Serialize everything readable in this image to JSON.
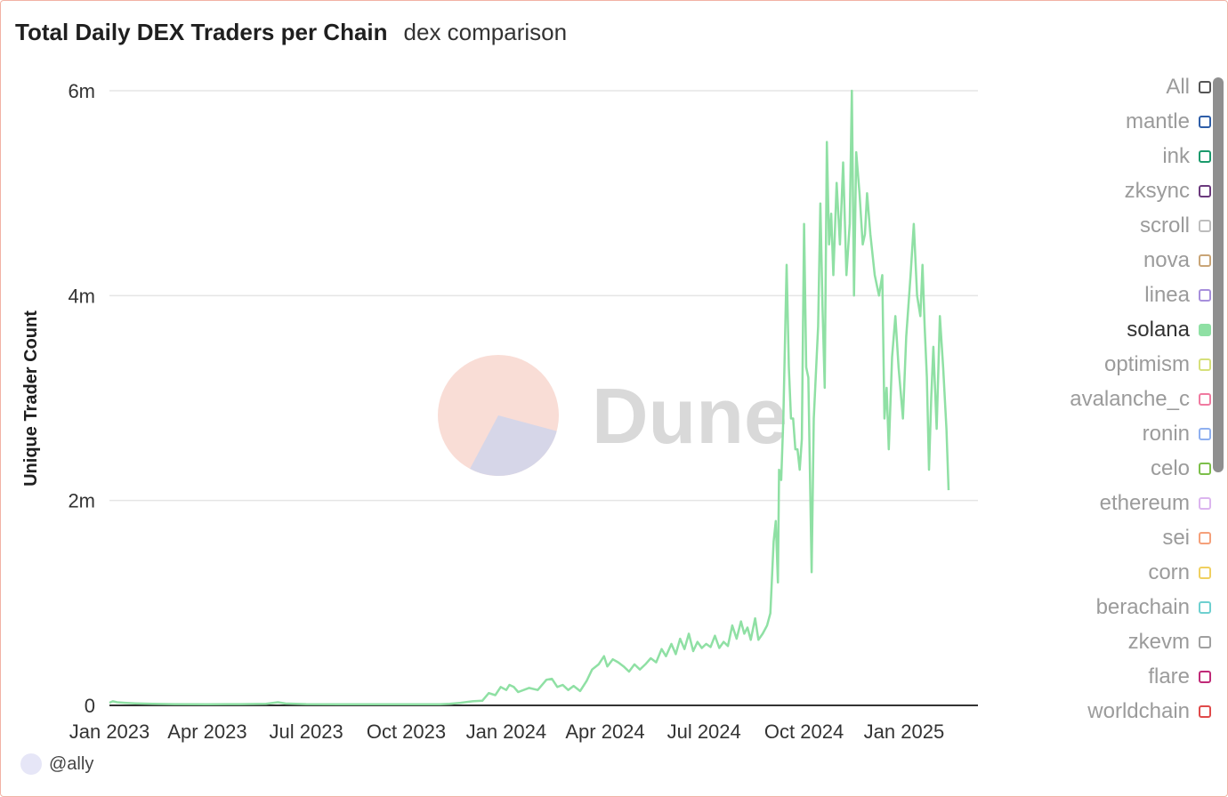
{
  "header": {
    "title": "Total Daily DEX Traders per Chain",
    "subtitle": "dex comparison"
  },
  "watermark": {
    "text": "Dune",
    "colors": {
      "top": "#f9ddd6",
      "bottom": "#d6d6e8",
      "text": "#d9d9d9"
    }
  },
  "author": {
    "handle": "@ally"
  },
  "colors": {
    "series": "#8fe0a4",
    "grid": "#e5e5e5",
    "axis": "#333333",
    "border": "#f2b2a4"
  },
  "legend": {
    "items": [
      {
        "label": "All",
        "color": "#555555",
        "active": false
      },
      {
        "label": "mantle",
        "color": "#2e5ea8",
        "active": false
      },
      {
        "label": "ink",
        "color": "#1a9a6c",
        "active": false
      },
      {
        "label": "zksync",
        "color": "#6b3a7d",
        "active": false
      },
      {
        "label": "scroll",
        "color": "#bdbdbd",
        "active": false
      },
      {
        "label": "nova",
        "color": "#c9a577",
        "active": false
      },
      {
        "label": "linea",
        "color": "#a78fdc",
        "active": false
      },
      {
        "label": "solana",
        "color": "#8fe0a4",
        "active": true
      },
      {
        "label": "optimism",
        "color": "#d6e07a",
        "active": false
      },
      {
        "label": "avalanche_c",
        "color": "#f07aa0",
        "active": false
      },
      {
        "label": "ronin",
        "color": "#8fb0f0",
        "active": false
      },
      {
        "label": "celo",
        "color": "#7cbf4a",
        "active": false
      },
      {
        "label": "ethereum",
        "color": "#dcb5ef",
        "active": false
      },
      {
        "label": "sei",
        "color": "#f5a07a",
        "active": false
      },
      {
        "label": "corn",
        "color": "#f0d060",
        "active": false
      },
      {
        "label": "berachain",
        "color": "#6ed0d0",
        "active": false
      },
      {
        "label": "zkevm",
        "color": "#a0a0a0",
        "active": false
      },
      {
        "label": "flare",
        "color": "#c02a78",
        "active": false
      },
      {
        "label": "worldchain",
        "color": "#e04a4a",
        "active": false
      }
    ]
  },
  "chart_data": {
    "type": "line",
    "title": "Total Daily DEX Traders per Chain",
    "subtitle": "dex comparison",
    "xlabel": "",
    "ylabel": "Unique Trader Count",
    "ylim": [
      0,
      6000000
    ],
    "xlim": [
      "2023-01-01",
      "2025-03-10"
    ],
    "yticks": [
      {
        "value": 0,
        "label": "0"
      },
      {
        "value": 2000000,
        "label": "2m"
      },
      {
        "value": 4000000,
        "label": "4m"
      },
      {
        "value": 6000000,
        "label": "6m"
      }
    ],
    "xticks": [
      {
        "date": "2023-01-01",
        "label": "Jan 2023"
      },
      {
        "date": "2023-04-01",
        "label": "Apr 2023"
      },
      {
        "date": "2023-07-01",
        "label": "Jul 2023"
      },
      {
        "date": "2023-10-01",
        "label": "Oct 2023"
      },
      {
        "date": "2024-01-01",
        "label": "Jan 2024"
      },
      {
        "date": "2024-04-01",
        "label": "Apr 2024"
      },
      {
        "date": "2024-07-01",
        "label": "Jul 2024"
      },
      {
        "date": "2024-10-01",
        "label": "Oct 2024"
      },
      {
        "date": "2025-01-01",
        "label": "Jan 2025"
      }
    ],
    "grid": true,
    "legend_position": "right",
    "series": [
      {
        "name": "solana",
        "color": "#8fe0a4",
        "points": [
          [
            "2023-01-01",
            25000
          ],
          [
            "2023-01-04",
            40000
          ],
          [
            "2023-01-08",
            30000
          ],
          [
            "2023-01-15",
            25000
          ],
          [
            "2023-01-25",
            20000
          ],
          [
            "2023-02-10",
            15000
          ],
          [
            "2023-03-01",
            12000
          ],
          [
            "2023-04-01",
            10000
          ],
          [
            "2023-05-01",
            12000
          ],
          [
            "2023-05-25",
            15000
          ],
          [
            "2023-06-05",
            30000
          ],
          [
            "2023-06-12",
            18000
          ],
          [
            "2023-07-01",
            12000
          ],
          [
            "2023-08-01",
            10000
          ],
          [
            "2023-09-01",
            10000
          ],
          [
            "2023-10-01",
            10000
          ],
          [
            "2023-11-01",
            10000
          ],
          [
            "2023-11-10",
            15000
          ],
          [
            "2023-11-20",
            25000
          ],
          [
            "2023-12-01",
            40000
          ],
          [
            "2023-12-10",
            45000
          ],
          [
            "2023-12-16",
            120000
          ],
          [
            "2023-12-22",
            100000
          ],
          [
            "2023-12-27",
            180000
          ],
          [
            "2024-01-01",
            150000
          ],
          [
            "2024-01-04",
            200000
          ],
          [
            "2024-01-08",
            180000
          ],
          [
            "2024-01-12",
            130000
          ],
          [
            "2024-01-22",
            170000
          ],
          [
            "2024-01-30",
            150000
          ],
          [
            "2024-02-07",
            250000
          ],
          [
            "2024-02-12",
            260000
          ],
          [
            "2024-02-17",
            180000
          ],
          [
            "2024-02-22",
            200000
          ],
          [
            "2024-02-27",
            150000
          ],
          [
            "2024-03-03",
            190000
          ],
          [
            "2024-03-09",
            140000
          ],
          [
            "2024-03-15",
            240000
          ],
          [
            "2024-03-20",
            350000
          ],
          [
            "2024-03-26",
            400000
          ],
          [
            "2024-03-31",
            480000
          ],
          [
            "2024-04-03",
            380000
          ],
          [
            "2024-04-08",
            450000
          ],
          [
            "2024-04-13",
            420000
          ],
          [
            "2024-04-18",
            380000
          ],
          [
            "2024-04-23",
            330000
          ],
          [
            "2024-04-28",
            400000
          ],
          [
            "2024-05-03",
            350000
          ],
          [
            "2024-05-08",
            400000
          ],
          [
            "2024-05-13",
            460000
          ],
          [
            "2024-05-18",
            420000
          ],
          [
            "2024-05-23",
            550000
          ],
          [
            "2024-05-27",
            480000
          ],
          [
            "2024-06-01",
            600000
          ],
          [
            "2024-06-05",
            500000
          ],
          [
            "2024-06-09",
            650000
          ],
          [
            "2024-06-13",
            550000
          ],
          [
            "2024-06-17",
            700000
          ],
          [
            "2024-06-21",
            530000
          ],
          [
            "2024-06-25",
            620000
          ],
          [
            "2024-06-29",
            560000
          ],
          [
            "2024-07-03",
            600000
          ],
          [
            "2024-07-07",
            570000
          ],
          [
            "2024-07-11",
            680000
          ],
          [
            "2024-07-15",
            560000
          ],
          [
            "2024-07-19",
            620000
          ],
          [
            "2024-07-23",
            580000
          ],
          [
            "2024-07-27",
            780000
          ],
          [
            "2024-07-31",
            650000
          ],
          [
            "2024-08-04",
            820000
          ],
          [
            "2024-08-07",
            700000
          ],
          [
            "2024-08-10",
            760000
          ],
          [
            "2024-08-13",
            640000
          ],
          [
            "2024-08-17",
            850000
          ],
          [
            "2024-08-20",
            640000
          ],
          [
            "2024-08-24",
            700000
          ],
          [
            "2024-08-28",
            780000
          ],
          [
            "2024-08-31",
            900000
          ],
          [
            "2024-09-03",
            1600000
          ],
          [
            "2024-09-05",
            1800000
          ],
          [
            "2024-09-07",
            1200000
          ],
          [
            "2024-09-08",
            2300000
          ],
          [
            "2024-09-10",
            2200000
          ],
          [
            "2024-09-12",
            2800000
          ],
          [
            "2024-09-15",
            4300000
          ],
          [
            "2024-09-17",
            3300000
          ],
          [
            "2024-09-19",
            2800000
          ],
          [
            "2024-09-21",
            2800000
          ],
          [
            "2024-09-23",
            2500000
          ],
          [
            "2024-09-25",
            2500000
          ],
          [
            "2024-09-27",
            2300000
          ],
          [
            "2024-09-29",
            2600000
          ],
          [
            "2024-10-01",
            4700000
          ],
          [
            "2024-10-03",
            3300000
          ],
          [
            "2024-10-05",
            3200000
          ],
          [
            "2024-10-08",
            1300000
          ],
          [
            "2024-10-10",
            2800000
          ],
          [
            "2024-10-14",
            3700000
          ],
          [
            "2024-10-16",
            4900000
          ],
          [
            "2024-10-18",
            3900000
          ],
          [
            "2024-10-20",
            3100000
          ],
          [
            "2024-10-22",
            5500000
          ],
          [
            "2024-10-24",
            4500000
          ],
          [
            "2024-10-26",
            4800000
          ],
          [
            "2024-10-28",
            4200000
          ],
          [
            "2024-10-31",
            5100000
          ],
          [
            "2024-11-03",
            4500000
          ],
          [
            "2024-11-06",
            5300000
          ],
          [
            "2024-11-09",
            4200000
          ],
          [
            "2024-11-12",
            4700000
          ],
          [
            "2024-11-14",
            6000000
          ],
          [
            "2024-11-16",
            4000000
          ],
          [
            "2024-11-18",
            5400000
          ],
          [
            "2024-11-21",
            5000000
          ],
          [
            "2024-11-24",
            4500000
          ],
          [
            "2024-11-26",
            4600000
          ],
          [
            "2024-11-28",
            5000000
          ],
          [
            "2024-12-01",
            4600000
          ],
          [
            "2024-12-05",
            4200000
          ],
          [
            "2024-12-09",
            4000000
          ],
          [
            "2024-12-12",
            4200000
          ],
          [
            "2024-12-14",
            2800000
          ],
          [
            "2024-12-16",
            3100000
          ],
          [
            "2024-12-18",
            2500000
          ],
          [
            "2024-12-21",
            3400000
          ],
          [
            "2024-12-24",
            3800000
          ],
          [
            "2024-12-27",
            3300000
          ],
          [
            "2024-12-31",
            2800000
          ],
          [
            "2025-01-03",
            3600000
          ],
          [
            "2025-01-07",
            4200000
          ],
          [
            "2025-01-10",
            4700000
          ],
          [
            "2025-01-13",
            4000000
          ],
          [
            "2025-01-16",
            3800000
          ],
          [
            "2025-01-18",
            4300000
          ],
          [
            "2025-01-20",
            3700000
          ],
          [
            "2025-01-22",
            3200000
          ],
          [
            "2025-01-24",
            2300000
          ],
          [
            "2025-01-26",
            3000000
          ],
          [
            "2025-01-28",
            3500000
          ],
          [
            "2025-01-31",
            2700000
          ],
          [
            "2025-02-03",
            3800000
          ],
          [
            "2025-02-06",
            3300000
          ],
          [
            "2025-02-09",
            2700000
          ],
          [
            "2025-02-11",
            2100000
          ]
        ]
      }
    ]
  }
}
